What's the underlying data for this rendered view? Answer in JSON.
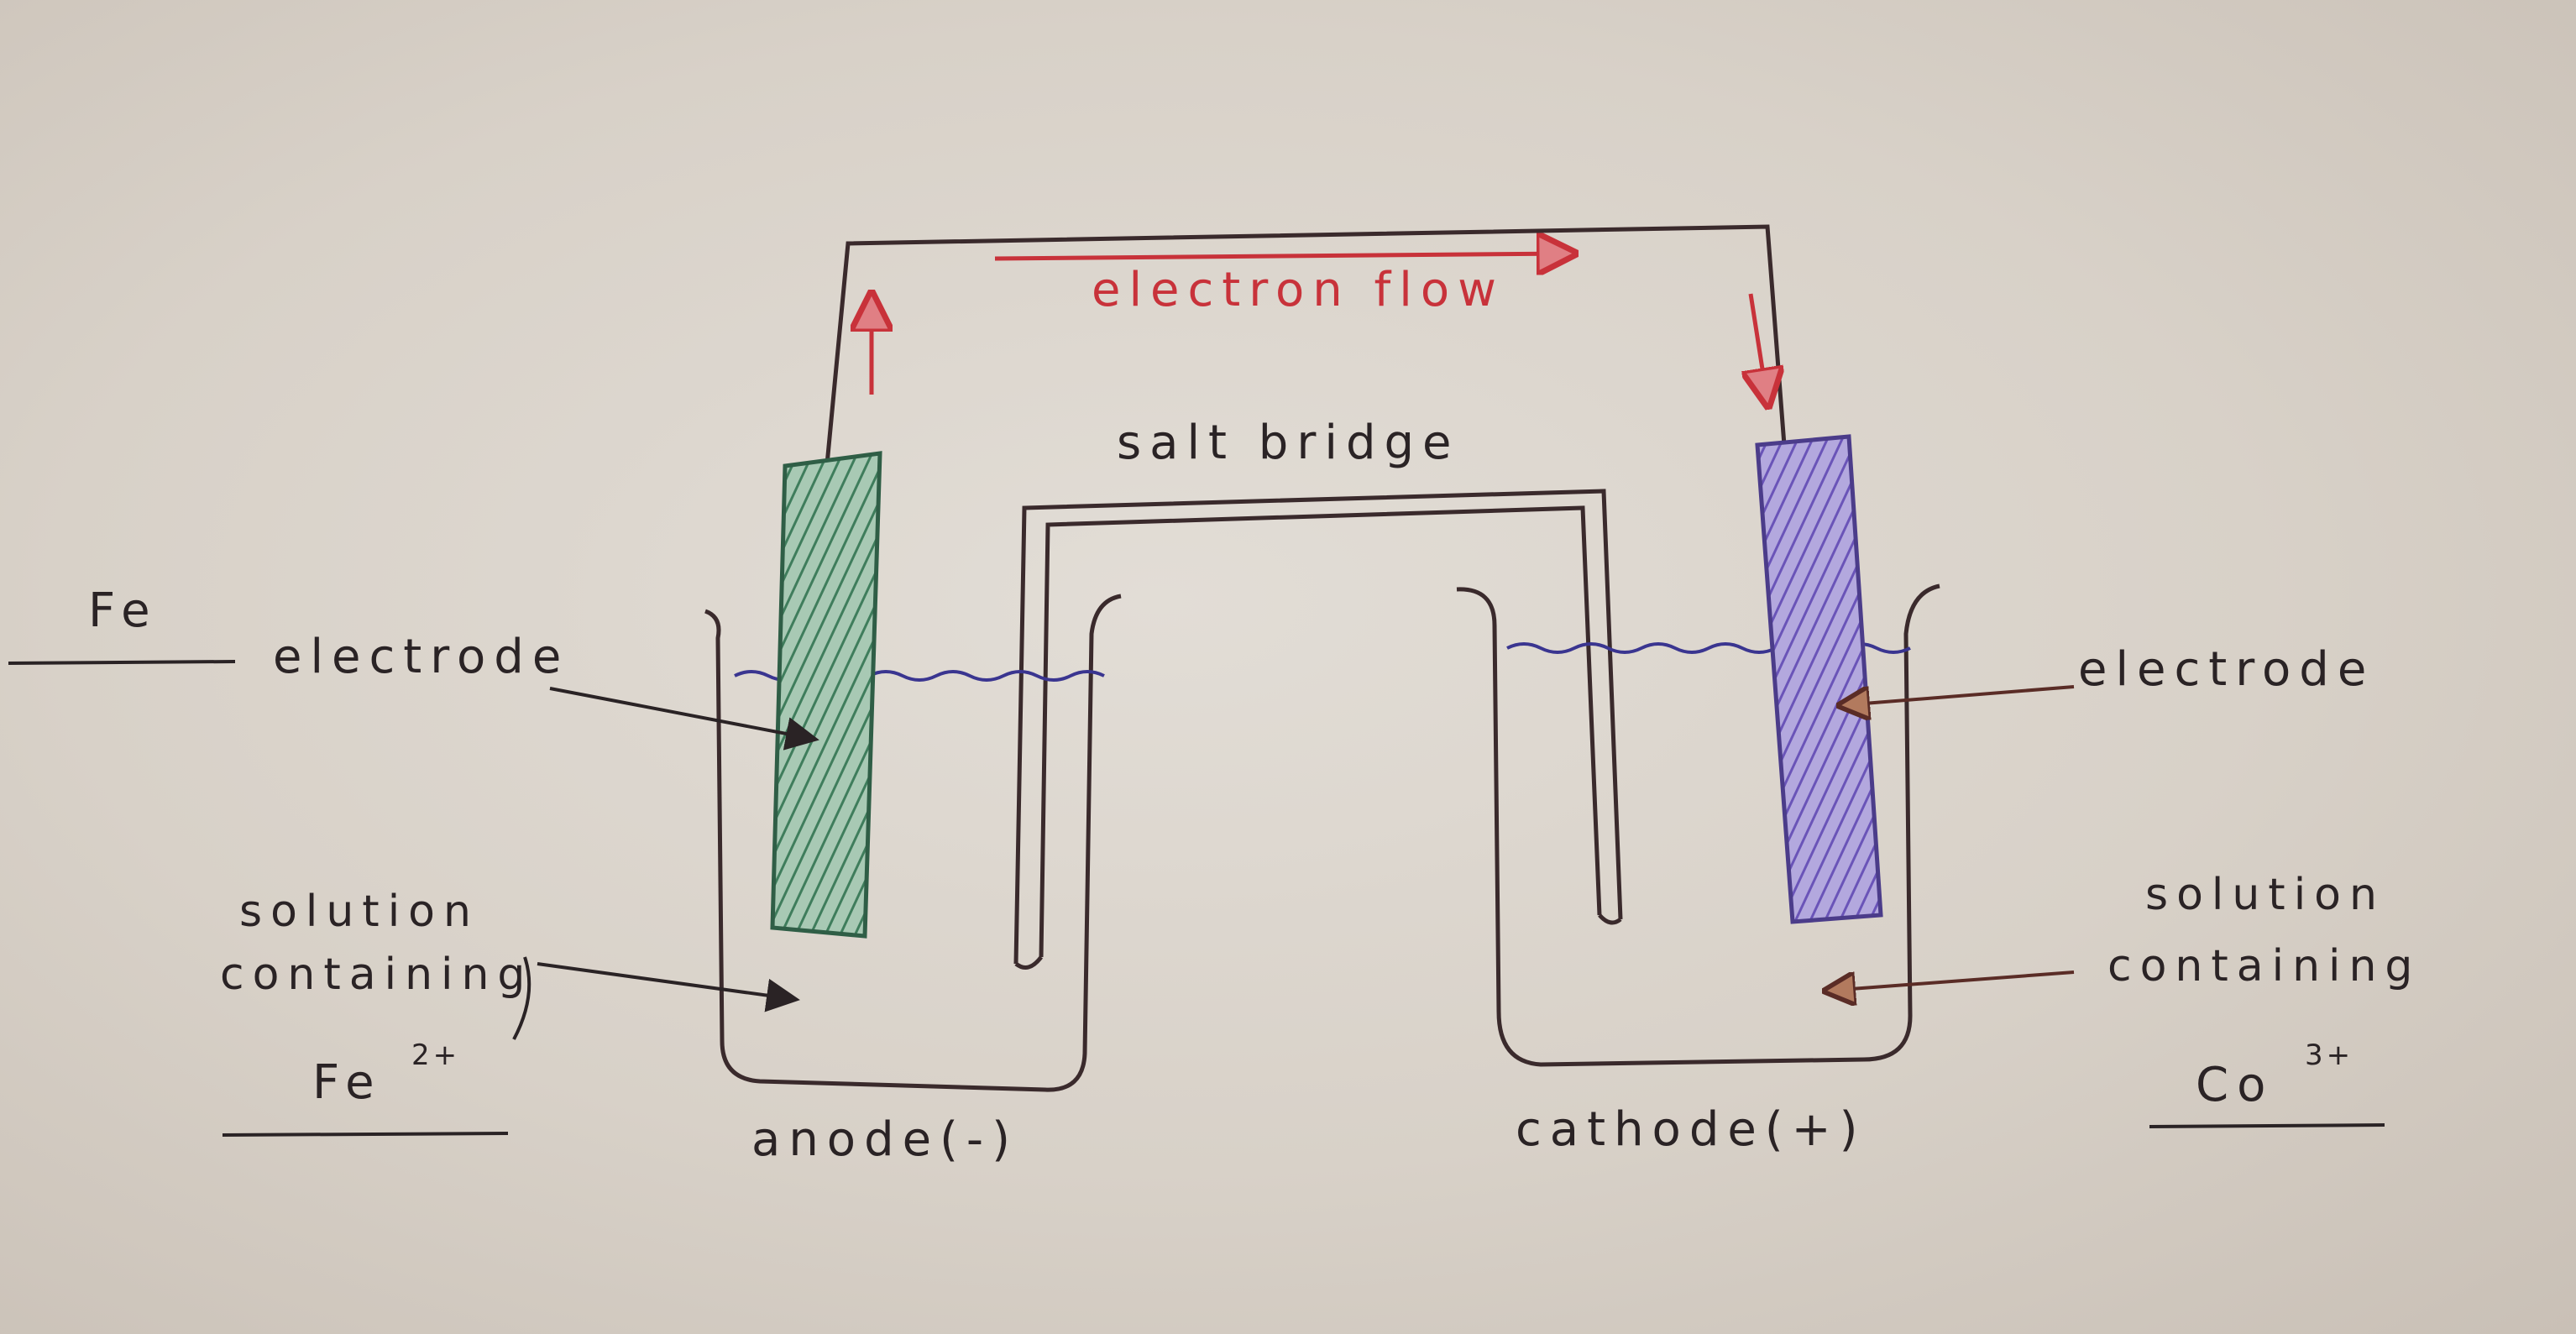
{
  "labels": {
    "electron_flow": "electron flow",
    "salt_bridge": "salt bridge",
    "left_metal": "Fe",
    "left_electrode": "electrode",
    "left_solution_line1": "solution",
    "left_solution_line2": "containing",
    "left_ion_symbol": "Fe",
    "left_ion_charge": "2+",
    "anode": "anode(-)",
    "right_electrode": "electrode",
    "right_solution_line1": "solution",
    "right_solution_line2": "containing",
    "right_ion_symbol": "Co",
    "right_ion_charge": "3+",
    "cathode": "cathode(+)"
  },
  "colors": {
    "ink": "#2a2325",
    "arrow": "#c8323a",
    "anode_electrode": "#4f8a6c",
    "cathode_electrode": "#7660c0",
    "solution_surface": "#3a3590"
  }
}
